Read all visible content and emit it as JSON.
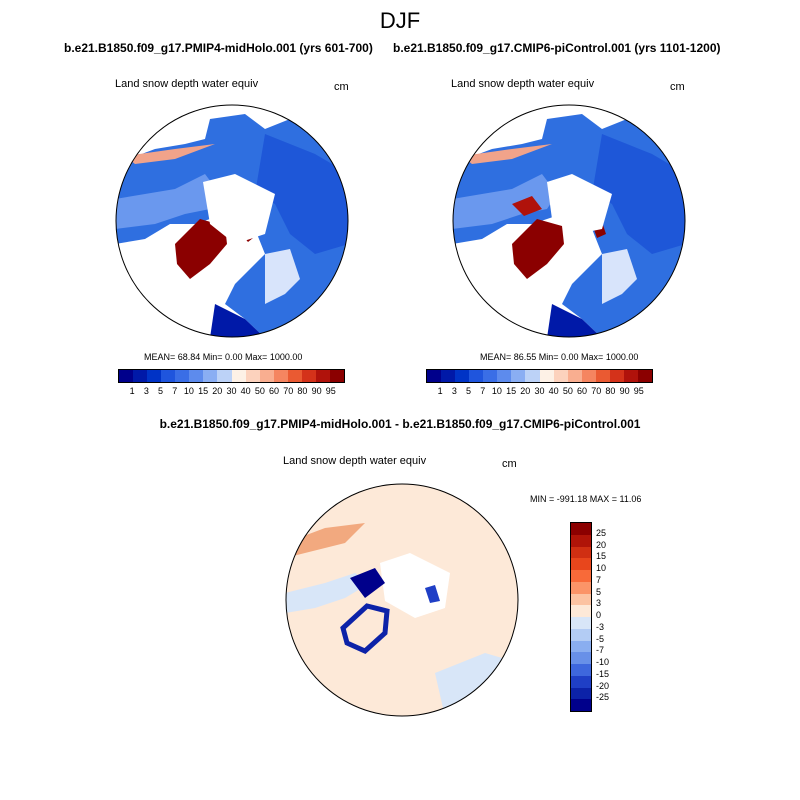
{
  "title": "DJF",
  "panels": [
    {
      "case_title": "b.e21.B1850.f09_g17.PMIP4-midHolo.001 (yrs 601-700)",
      "variable": "Land snow depth water equiv",
      "units": "cm",
      "stats": "MEAN=  68.84  Min=   0.00  Max= 1000.00"
    },
    {
      "case_title": "b.e21.B1850.f09_g17.CMIP6-piControl.001 (yrs 1101-1200)",
      "variable": "Land snow depth water equiv",
      "units": "cm",
      "stats": "MEAN=  86.55  Min=   0.00  Max= 1000.00"
    }
  ],
  "difference": {
    "title": "b.e21.B1850.f09_g17.PMIP4-midHolo.001 - b.e21.B1850.f09_g17.CMIP6-piControl.001",
    "variable": "Land snow depth water equiv",
    "units": "cm",
    "stats": "MIN = -991.18 MAX =  11.06"
  },
  "colorbar": {
    "ticks": [
      "1",
      "3",
      "5",
      "7",
      "10",
      "15",
      "20",
      "30",
      "40",
      "50",
      "60",
      "70",
      "80",
      "90",
      "95"
    ],
    "colors": [
      "#00008b",
      "#0019a8",
      "#0033c6",
      "#1f55dd",
      "#3a6ee6",
      "#5d8bed",
      "#8aaef3",
      "#bcd2f7",
      "#fdf1e6",
      "#fcd2bd",
      "#f9ae90",
      "#f58560",
      "#ea5a32",
      "#d4321a",
      "#b0120b",
      "#8b0000"
    ]
  },
  "diff_colorbar": {
    "ticks": [
      "25",
      "20",
      "15",
      "10",
      "7",
      "5",
      "3",
      "0",
      "-3",
      "-5",
      "-7",
      "-10",
      "-15",
      "-20",
      "-25"
    ],
    "colors": [
      "#8b0000",
      "#b01408",
      "#d02f12",
      "#e8461c",
      "#f86a39",
      "#fb9468",
      "#fcc3a2",
      "#fde9d8",
      "#d8e6f8",
      "#b3ccf4",
      "#8aaef0",
      "#6890e8",
      "#3e67dd",
      "#1f3fc6",
      "#0c22a8",
      "#00008b"
    ]
  }
}
